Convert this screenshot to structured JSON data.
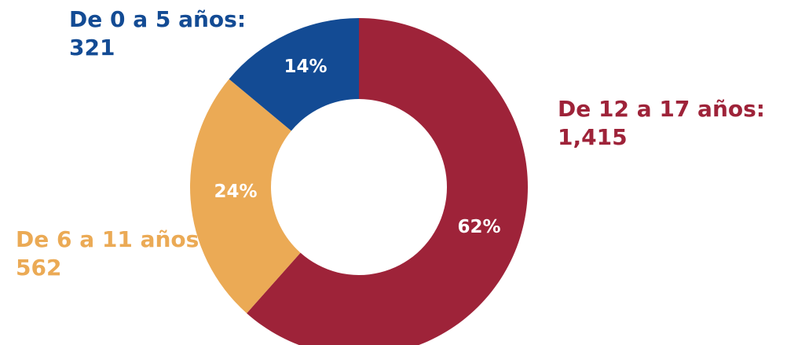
{
  "chart_data": {
    "type": "pie",
    "donut": true,
    "categories": [
      "De 12 a 17 años:",
      "De 6 a 11 años:",
      "De 0 a 5 años:"
    ],
    "values": [
      1415,
      562,
      321
    ],
    "value_labels": [
      "1,415",
      "562",
      "321"
    ],
    "percent_labels": [
      "62%",
      "24%",
      "14%"
    ],
    "colors": [
      "#9e2339",
      "#ebaa55",
      "#134b94"
    ],
    "title": "",
    "legend": "none"
  }
}
